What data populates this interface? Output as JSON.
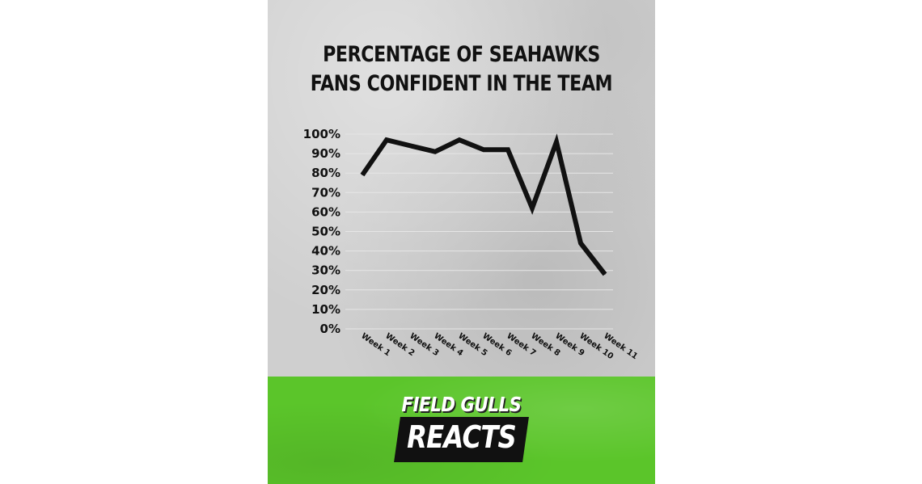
{
  "chart_data": {
    "type": "line",
    "title": "PERCENTAGE OF SEAHAWKS FANS CONFIDENT IN THE TEAM",
    "xlabel": "",
    "ylabel": "",
    "categories": [
      "Week 1",
      "Week 2",
      "Week 3",
      "Week 4",
      "Week 5",
      "Week 6",
      "Week 7",
      "Week 8",
      "Week 9",
      "Week 10",
      "Week 11"
    ],
    "series": [
      {
        "values": [
          79,
          97,
          94,
          91,
          97,
          92,
          92,
          62,
          96,
          44,
          28
        ]
      }
    ],
    "y_ticks": [
      "100%",
      "90%",
      "80%",
      "70%",
      "60%",
      "50%",
      "40%",
      "30%",
      "20%",
      "10%",
      "0%"
    ],
    "ylim": [
      0,
      100
    ],
    "grid": true,
    "legend": "none"
  },
  "branding": {
    "top": "FIELD GULLS",
    "main": "REACTS"
  },
  "colors": {
    "chart_background": "#cfcfcf",
    "brand_background": "#5bc52a",
    "line": "#111111"
  }
}
